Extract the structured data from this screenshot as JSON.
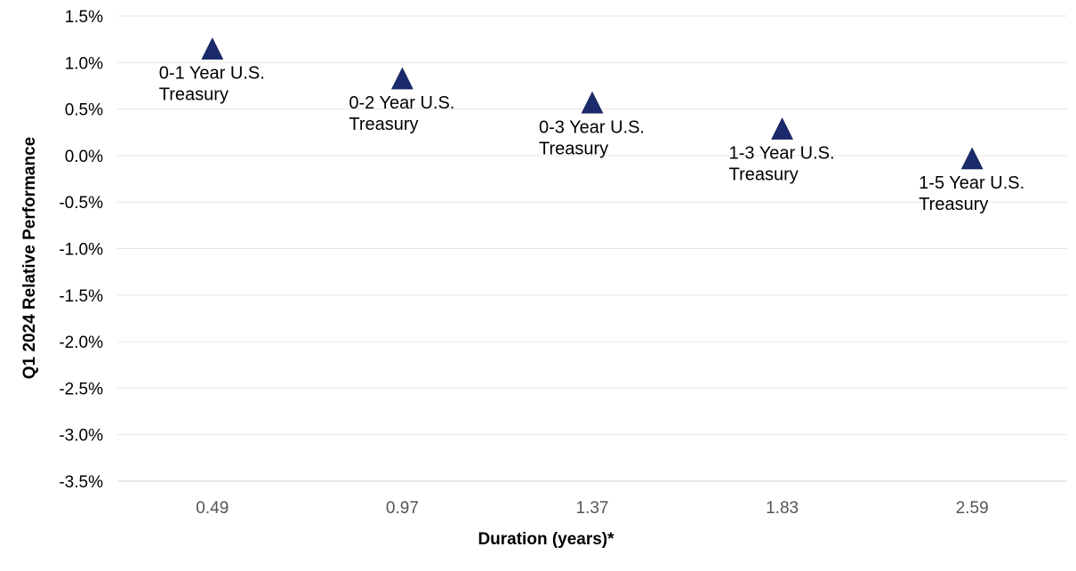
{
  "chart_data": {
    "type": "scatter",
    "title": "",
    "xlabel": "Duration (years)*",
    "ylabel": "Q1 2024 Relative Performance",
    "x_categories": [
      "0.49",
      "0.97",
      "1.37",
      "1.83",
      "2.59"
    ],
    "ylim": [
      -3.5,
      1.5
    ],
    "ytick_step": 0.5,
    "y_unit": "%",
    "grid": true,
    "marker": "triangle",
    "marker_color": "#1a2a6c",
    "points": [
      {
        "x": "0.49",
        "y": 1.15,
        "label_lines": [
          "0-1 Year U.S.",
          "Treasury"
        ]
      },
      {
        "x": "0.97",
        "y": 0.83,
        "label_lines": [
          "0-2 Year U.S.",
          "Treasury"
        ]
      },
      {
        "x": "1.37",
        "y": 0.57,
        "label_lines": [
          "0-3 Year U.S.",
          "Treasury"
        ]
      },
      {
        "x": "1.83",
        "y": 0.29,
        "label_lines": [
          "1-3 Year U.S.",
          "Treasury"
        ]
      },
      {
        "x": "2.59",
        "y": -0.03,
        "label_lines": [
          "1-5 Year U.S.",
          "Treasury"
        ]
      }
    ]
  }
}
